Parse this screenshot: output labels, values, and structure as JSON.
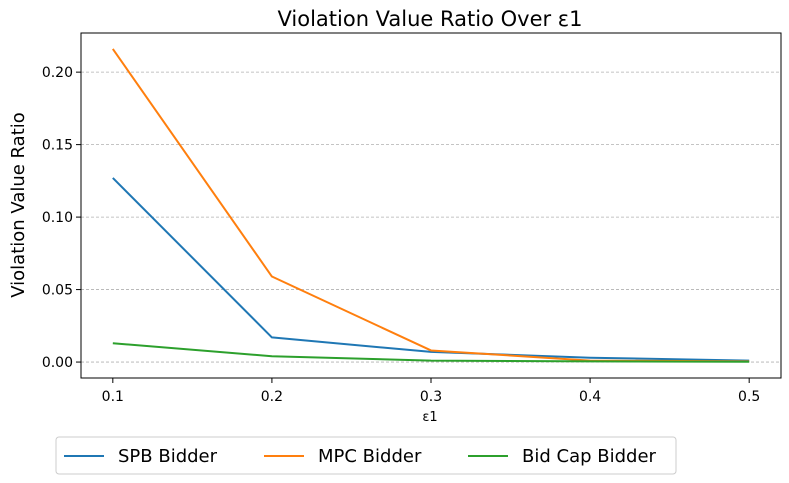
{
  "chart_data": {
    "type": "line",
    "title": "Violation Value Ratio Over ε1",
    "xlabel": "ε1",
    "ylabel": "Violation Value Ratio",
    "x": [
      0.1,
      0.2,
      0.3,
      0.4,
      0.5
    ],
    "xticks": [
      "0.1",
      "0.2",
      "0.3",
      "0.4",
      "0.5"
    ],
    "yticks": [
      "0.00",
      "0.05",
      "0.10",
      "0.15",
      "0.20"
    ],
    "xlim": [
      0.08,
      0.52
    ],
    "ylim": [
      -0.011,
      0.227
    ],
    "grid": "y-dashed",
    "legend_position": "bottom-center",
    "series": [
      {
        "name": "SPB Bidder",
        "color": "#1f77b4",
        "values": [
          0.127,
          0.017,
          0.007,
          0.003,
          0.001
        ]
      },
      {
        "name": "MPC Bidder",
        "color": "#ff7f0e",
        "values": [
          0.216,
          0.059,
          0.008,
          0.001,
          0.0005
        ]
      },
      {
        "name": "Bid Cap Bidder",
        "color": "#2ca02c",
        "values": [
          0.013,
          0.004,
          0.001,
          0.0005,
          0.0002
        ]
      }
    ]
  }
}
